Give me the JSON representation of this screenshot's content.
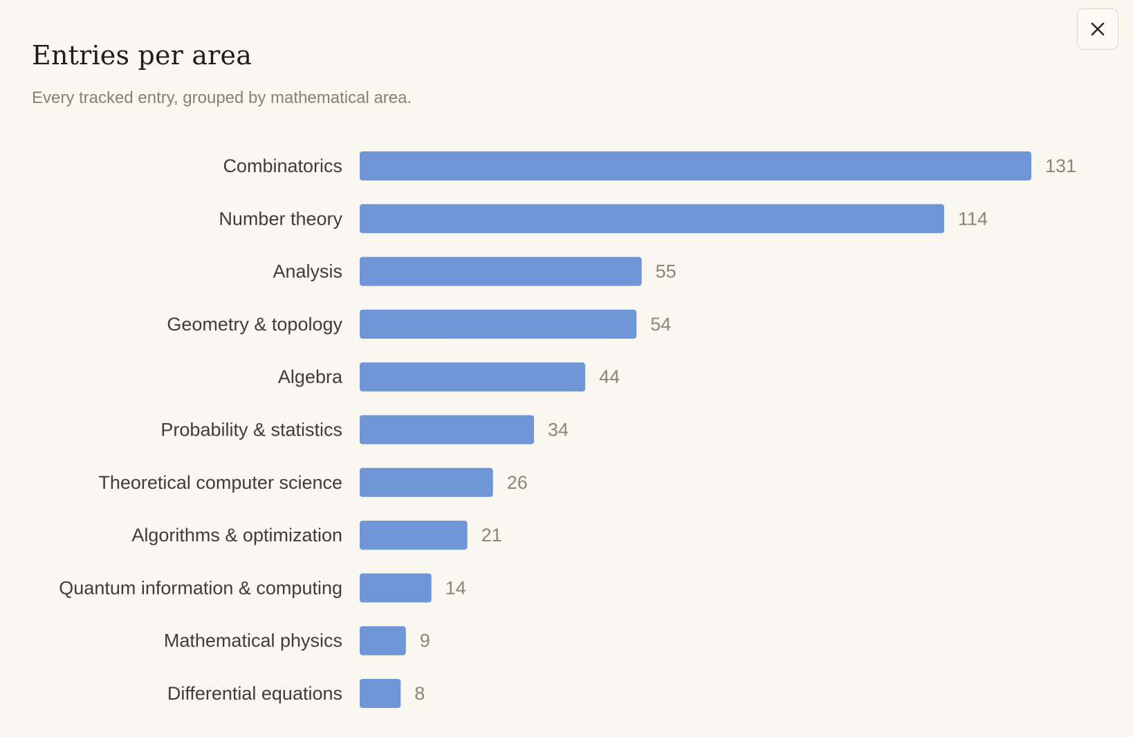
{
  "dialog": {
    "title": "Entries per area",
    "subtitle": "Every tracked entry, grouped by mathematical area.",
    "close_icon": "close-icon"
  },
  "colors": {
    "bar": "#6f97d8",
    "background": "#faf7f0"
  },
  "chart_data": {
    "type": "bar",
    "orientation": "horizontal",
    "title": "Entries per area",
    "subtitle": "Every tracked entry, grouped by mathematical area.",
    "categories": [
      "Combinatorics",
      "Number theory",
      "Analysis",
      "Geometry & topology",
      "Algebra",
      "Probability & statistics",
      "Theoretical computer science",
      "Algorithms & optimization",
      "Quantum information & computing",
      "Mathematical physics",
      "Differential equations"
    ],
    "values": [
      131,
      114,
      55,
      54,
      44,
      34,
      26,
      21,
      14,
      9,
      8
    ],
    "data_labels": true,
    "grid": false,
    "xlabel": "",
    "ylabel": ""
  }
}
